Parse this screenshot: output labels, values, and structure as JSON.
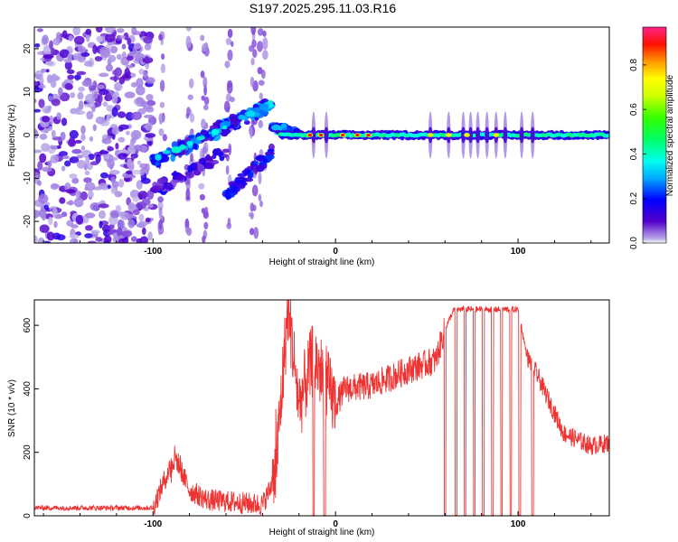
{
  "title": "S197.2025.295.11.03.R16",
  "chart_data": [
    {
      "type": "heatmap",
      "name": "spectrogram",
      "xlabel": "Height of straight line (km)",
      "ylabel": "Frequency (Hz)",
      "xlim": [
        -165,
        150
      ],
      "ylim": [
        -25,
        25
      ],
      "xticks": [
        "-100",
        "0",
        "100"
      ],
      "yticks": [
        "20",
        "10",
        "0",
        "-10",
        "-20"
      ],
      "colorbar": {
        "label": "Normalized spectral amplitude",
        "range": [
          0,
          0.97
        ],
        "ticks": [
          "0.0",
          "0.2",
          "0.4",
          "0.6",
          "0.8"
        ]
      },
      "features": [
        {
          "name": "noise region",
          "x_range": [
            -165,
            -100
          ],
          "freq_range": [
            -25,
            25
          ]
        },
        {
          "name": "rising track",
          "x_range": [
            -100,
            -35
          ],
          "freq_range": [
            -5,
            7
          ]
        },
        {
          "name": "falling-then-rising track",
          "x_range": [
            -100,
            -35
          ],
          "freq_range": [
            -15,
            -5
          ]
        },
        {
          "name": "carrier line",
          "x_range": [
            -30,
            150
          ],
          "freq": 0
        }
      ]
    },
    {
      "type": "line",
      "name": "snr",
      "xlabel": "Height of straight line (km)",
      "ylabel": "SNR (10 * v/v)",
      "xlim": [
        -165,
        150
      ],
      "ylim": [
        0,
        680
      ],
      "xticks": [
        "-100",
        "0",
        "100"
      ],
      "yticks": [
        "0",
        "200",
        "400",
        "600"
      ],
      "color": "#ee3333",
      "key_points": [
        {
          "x": -165,
          "y": 25
        },
        {
          "x": -100,
          "y": 25
        },
        {
          "x": -88,
          "y": 190
        },
        {
          "x": -80,
          "y": 80
        },
        {
          "x": -70,
          "y": 50
        },
        {
          "x": -40,
          "y": 35
        },
        {
          "x": -33,
          "y": 120
        },
        {
          "x": -26,
          "y": 660
        },
        {
          "x": -20,
          "y": 350
        },
        {
          "x": -12,
          "y": 500
        },
        {
          "x": 0,
          "y": 350
        },
        {
          "x": 5,
          "y": 400
        },
        {
          "x": 20,
          "y": 410
        },
        {
          "x": 40,
          "y": 460
        },
        {
          "x": 55,
          "y": 490
        },
        {
          "x": 60,
          "y": 590
        },
        {
          "x": 65,
          "y": 650
        },
        {
          "x": 100,
          "y": 650
        },
        {
          "x": 105,
          "y": 500
        },
        {
          "x": 110,
          "y": 450
        },
        {
          "x": 125,
          "y": 260
        },
        {
          "x": 140,
          "y": 220
        },
        {
          "x": 150,
          "y": 230
        }
      ],
      "dropouts_x": [
        -12,
        -6,
        60,
        66,
        71,
        76,
        81,
        86,
        91,
        96,
        101,
        108
      ]
    }
  ]
}
